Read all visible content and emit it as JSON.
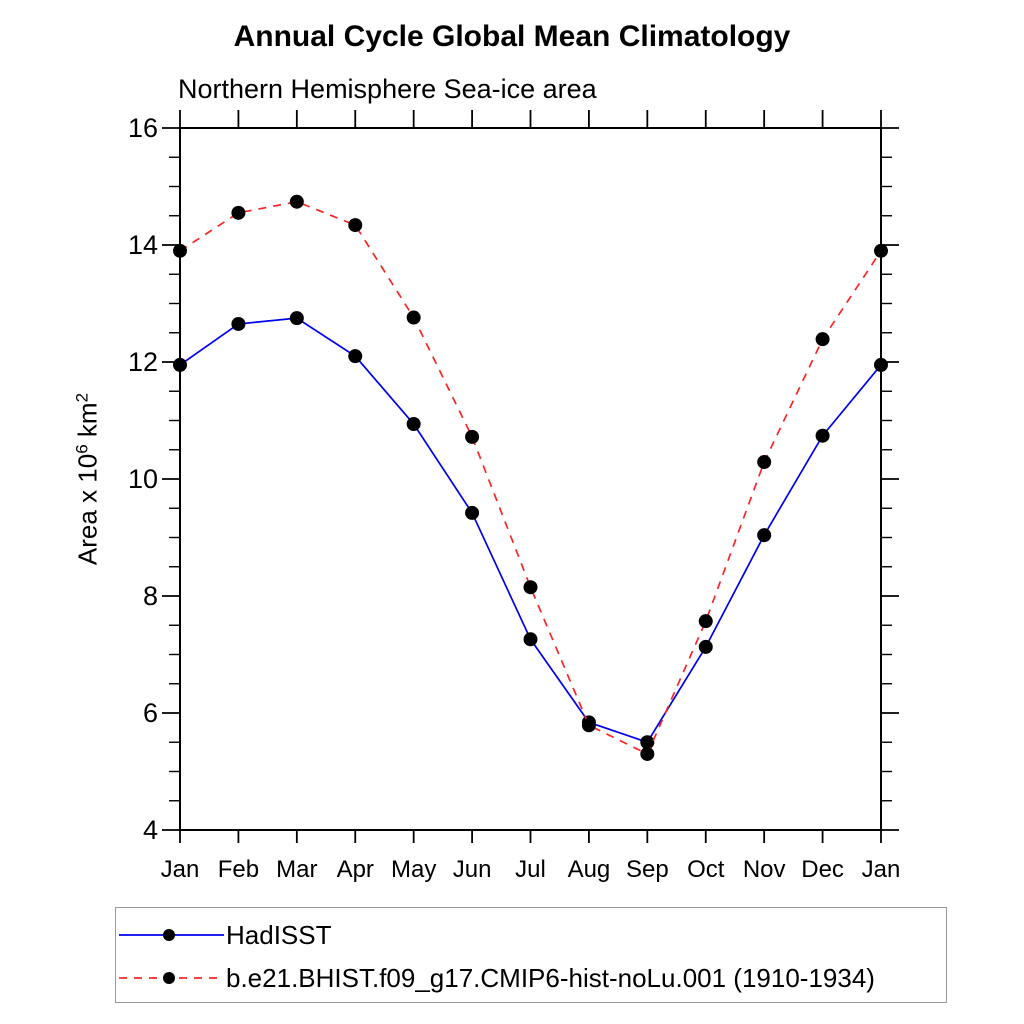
{
  "header": {
    "title": "Annual Cycle Global Mean Climatology",
    "subtitle": "Northern Hemisphere Sea-ice area"
  },
  "chart_data": {
    "type": "line",
    "title": "Annual Cycle Global Mean Climatology",
    "subtitle": "Northern Hemisphere Sea-ice area",
    "ylabel": {
      "prefix": "Area x 10",
      "exp": "6",
      "unit": " km",
      "unit_exp": "2"
    },
    "x_categories": [
      "Jan",
      "Feb",
      "Mar",
      "Apr",
      "May",
      "Jun",
      "Jul",
      "Aug",
      "Sep",
      "Oct",
      "Nov",
      "Dec",
      "Jan"
    ],
    "ylim": [
      4,
      16
    ],
    "y_major_ticks": [
      4,
      6,
      8,
      10,
      12,
      14,
      16
    ],
    "y_minor_step": 0.5,
    "grid": false,
    "legend_position": "bottom-left-box",
    "series": [
      {
        "name": "HadISST",
        "color": "#0000ee",
        "style": "solid",
        "marker": "circle",
        "marker_color": "#000000",
        "values": [
          11.95,
          12.65,
          12.75,
          12.1,
          10.94,
          9.42,
          7.26,
          5.84,
          5.5,
          7.13,
          9.04,
          10.74,
          11.95
        ]
      },
      {
        "name": "b.e21.BHIST.f09_g17.CMIP6-hist-noLu.001 (1910-1934)",
        "color": "#fb2424",
        "style": "dashed",
        "marker": "circle",
        "marker_color": "#000000",
        "values": [
          13.9,
          14.55,
          14.74,
          14.34,
          12.76,
          10.72,
          8.15,
          5.79,
          5.3,
          7.57,
          10.29,
          12.39,
          13.9
        ]
      }
    ]
  },
  "colors": {
    "axis": "#000000",
    "legend_border": "#9a9a9a",
    "background": "#ffffff"
  }
}
